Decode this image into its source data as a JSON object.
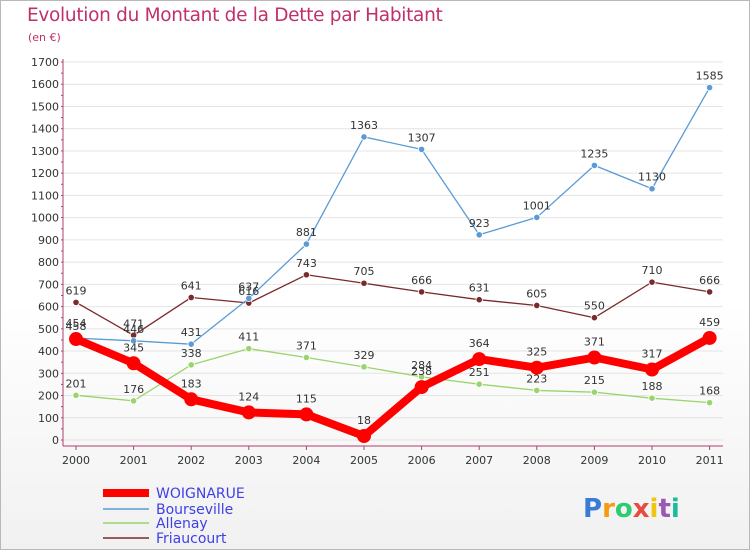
{
  "chart_data": {
    "type": "line",
    "title": "Evolution du Montant de la Dette par Habitant",
    "subtitle": "(en €)",
    "xlabel": "",
    "ylabel": "",
    "ylim": [
      0,
      1700
    ],
    "yticks": [
      0,
      100,
      200,
      300,
      400,
      500,
      600,
      700,
      800,
      900,
      1000,
      1100,
      1200,
      1300,
      1400,
      1500,
      1600,
      1700
    ],
    "categories": [
      "2000",
      "2001",
      "2002",
      "2003",
      "2004",
      "2005",
      "2006",
      "2007",
      "2008",
      "2009",
      "2010",
      "2011"
    ],
    "legend_position": "bottom-left",
    "series": [
      {
        "name": "WOIGNARUE",
        "color": "#ff0000",
        "values": [
          454,
          345,
          183,
          124,
          115,
          18,
          238,
          364,
          325,
          371,
          317,
          459
        ]
      },
      {
        "name": "Bourseville",
        "color": "#5b9bd5",
        "values": [
          458,
          446,
          431,
          637,
          881,
          1363,
          1307,
          923,
          1001,
          1235,
          1130,
          1585
        ]
      },
      {
        "name": "Allenay",
        "color": "#9ad46c",
        "values": [
          201,
          176,
          338,
          411,
          371,
          329,
          284,
          251,
          223,
          215,
          188,
          168
        ]
      },
      {
        "name": "Friaucourt",
        "color": "#7a2a2a",
        "values": [
          619,
          471,
          641,
          616,
          743,
          705,
          666,
          631,
          605,
          550,
          710,
          666
        ]
      }
    ]
  },
  "brand": {
    "letters": [
      "P",
      "r",
      "o",
      "x",
      "i",
      "t",
      "i"
    ],
    "colors": [
      "#3a7bd5",
      "#f39c12",
      "#2ecc71",
      "#e74c3c",
      "#f1c40f",
      "#9b59b6",
      "#1abc9c"
    ]
  }
}
